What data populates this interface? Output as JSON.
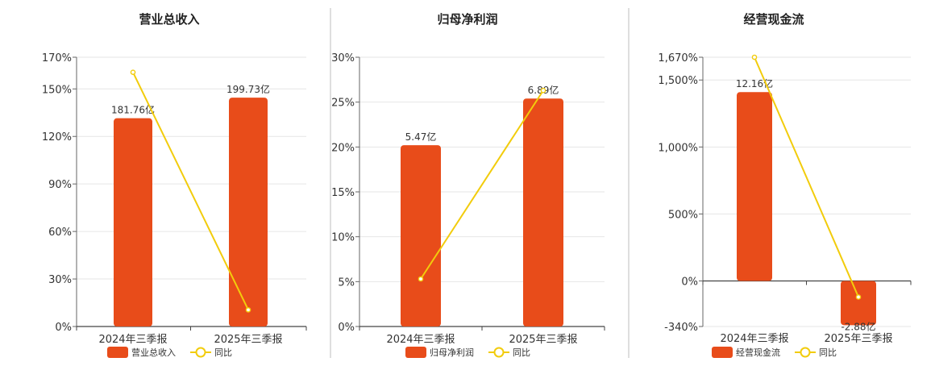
{
  "chart_data": [
    {
      "type": "bar",
      "title": "营业总收入",
      "categories": [
        "2024年三季报",
        "2025年三季报"
      ],
      "ylim": [
        0,
        170
      ],
      "yticks": [
        0,
        30,
        60,
        90,
        120,
        150,
        170
      ],
      "ytick_labels": [
        "0%",
        "30%",
        "60%",
        "90%",
        "120%",
        "150%",
        "170%"
      ],
      "series": [
        {
          "name": "营业总收入",
          "kind": "bar",
          "values": [
            131.5,
            144.5
          ],
          "labels": [
            "181.76亿",
            "199.73亿"
          ],
          "color": "#e84c1a"
        },
        {
          "name": "同比",
          "kind": "line",
          "values": [
            160.5,
            10.5
          ],
          "color": "#f2cc0c"
        }
      ],
      "grid": true,
      "legend": "bottom"
    },
    {
      "type": "bar",
      "title": "归母净利润",
      "categories": [
        "2024年三季报",
        "2025年三季报"
      ],
      "ylim": [
        0,
        30
      ],
      "yticks": [
        0,
        5,
        10,
        15,
        20,
        25,
        30
      ],
      "ytick_labels": [
        "0%",
        "5%",
        "10%",
        "15%",
        "20%",
        "25%",
        "30%"
      ],
      "series": [
        {
          "name": "归母净利润",
          "kind": "bar",
          "values": [
            20.2,
            25.4
          ],
          "labels": [
            "5.47亿",
            "6.89亿"
          ],
          "color": "#e84c1a"
        },
        {
          "name": "同比",
          "kind": "line",
          "values": [
            5.3,
            26.3
          ],
          "color": "#f2cc0c"
        }
      ],
      "grid": true,
      "legend": "bottom"
    },
    {
      "type": "bar",
      "title": "经营现金流",
      "categories": [
        "2024年三季报",
        "2025年三季报"
      ],
      "ylim": [
        -340,
        1670
      ],
      "yticks": [
        -340,
        0,
        500,
        1000,
        1500,
        1670
      ],
      "ytick_labels": [
        "-340%",
        "0%",
        "500%",
        "1,000%",
        "1,500%",
        "1,670%"
      ],
      "series": [
        {
          "name": "经营现金流",
          "kind": "bar",
          "values": [
            1410,
            -330
          ],
          "labels": [
            "12.16亿",
            "-2.88亿"
          ],
          "color": "#e84c1a"
        },
        {
          "name": "同比",
          "kind": "line",
          "values": [
            1670,
            -120
          ],
          "color": "#f2cc0c"
        }
      ],
      "grid": true,
      "legend": "bottom"
    }
  ]
}
